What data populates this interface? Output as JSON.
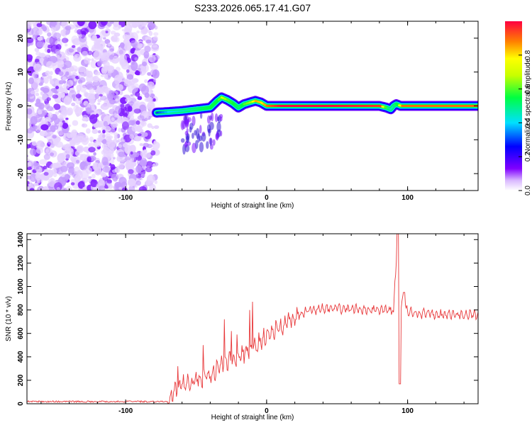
{
  "title": "S233.2026.065.17.41.G07",
  "chart_data": [
    {
      "type": "heatmap",
      "name": "spectrogram",
      "xlabel": "Height of straight line (km)",
      "ylabel": "Frequency (Hz)",
      "xlim": [
        -170,
        150
      ],
      "ylim": [
        -25,
        25
      ],
      "xticks": [
        -100,
        0,
        100
      ],
      "xtick_labels": [
        "-100",
        "0",
        "100"
      ],
      "yticks": [
        20,
        10,
        0,
        -10,
        -20
      ],
      "ytick_labels": [
        "20",
        "10",
        "0",
        "-10",
        "-20"
      ],
      "noise_region_km": [
        -170,
        -78
      ],
      "signal_ridge": {
        "x": [
          -78,
          -70,
          -60,
          -50,
          -40,
          -35,
          -32,
          -28,
          -24,
          -20,
          -16,
          -12,
          -8,
          -4,
          0,
          10,
          40,
          80,
          85,
          88,
          90,
          92,
          95,
          100,
          150
        ],
        "y": [
          -2,
          -1.8,
          -1.5,
          -1,
          -0.5,
          1.5,
          2.5,
          1.8,
          0.8,
          -0.5,
          0.5,
          1,
          1.5,
          1,
          0,
          0,
          0,
          0,
          -0.5,
          -1,
          0,
          0.5,
          0,
          0,
          0
        ],
        "peak_amplitude": [
          0.3,
          0.4,
          0.45,
          0.5,
          0.55,
          0.55,
          0.7,
          0.6,
          0.55,
          0.5,
          0.6,
          0.65,
          0.85,
          0.8,
          0.9,
          1.0,
          1.0,
          0.95,
          0.5,
          0.45,
          0.5,
          0.55,
          0.9,
          0.9,
          0.9
        ]
      },
      "colorbar": {
        "label": "Normalized spectral amplitude",
        "range": [
          0,
          1
        ],
        "ticks": [
          0.0,
          0.2,
          0.4,
          0.6,
          0.8
        ],
        "tick_labels": [
          "0.0",
          "0.2",
          "0.4",
          "0.6",
          "0.8"
        ]
      }
    },
    {
      "type": "line",
      "name": "snr",
      "xlabel": "Height of straight line (km)",
      "ylabel": "SNR (10 * v/v)",
      "xlim": [
        -170,
        150
      ],
      "ylim": [
        0,
        1450
      ],
      "xticks": [
        -100,
        0,
        100
      ],
      "xtick_labels": [
        "-100",
        "0",
        "100"
      ],
      "yticks": [
        0,
        200,
        400,
        600,
        800,
        1000,
        1200,
        1400
      ],
      "ytick_labels": [
        "0",
        "200",
        "400",
        "600",
        "800",
        "1000",
        "1200",
        "1400"
      ],
      "color": "#e8383a",
      "series_envelope": {
        "x": [
          -170,
          -70,
          -64,
          -60,
          -50,
          -40,
          -30,
          -20,
          -10,
          0,
          10,
          20,
          30,
          40,
          60,
          80,
          90,
          93,
          94,
          95,
          97,
          100,
          120,
          150
        ],
        "y": [
          15,
          15,
          120,
          150,
          200,
          250,
          350,
          400,
          470,
          580,
          650,
          730,
          800,
          810,
          810,
          800,
          790,
          1450,
          170,
          800,
          900,
          780,
          760,
          760
        ]
      },
      "spikes": {
        "x": [
          -63,
          -45,
          -30,
          -25,
          -21,
          -12,
          -10
        ],
        "y": [
          320,
          500,
          720,
          620,
          590,
          800,
          870
        ]
      }
    }
  ]
}
